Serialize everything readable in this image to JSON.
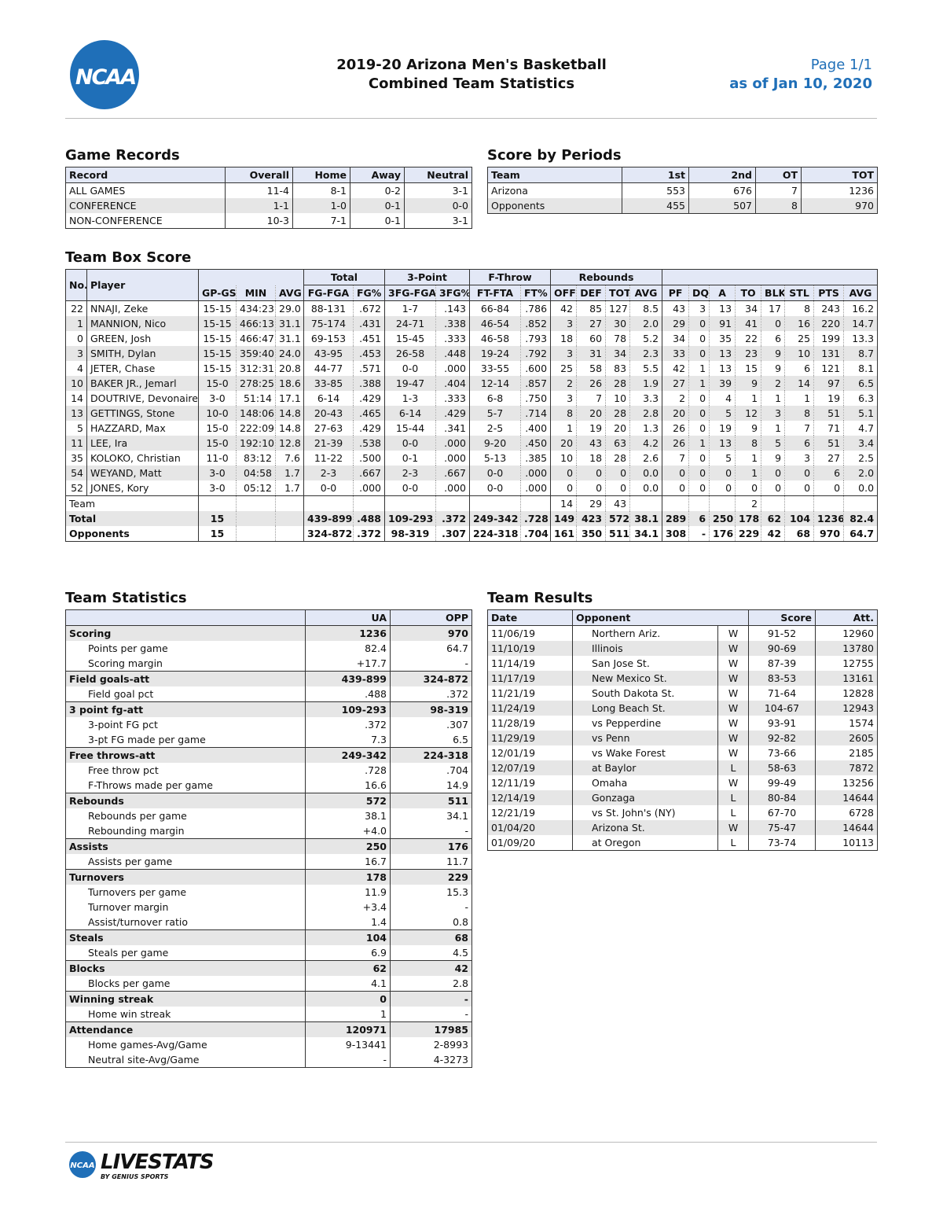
{
  "header": {
    "logo": "NCAA",
    "title": [
      "2019-20 Arizona Men's Basketball",
      "Combined Team Statistics"
    ],
    "page": "Page 1/1",
    "as_of": "as of Jan 10, 2020"
  },
  "game_records": {
    "title": "Game Records",
    "columns": [
      "Record",
      "Overall",
      "Home",
      "Away",
      "Neutral"
    ],
    "rows": [
      [
        "ALL GAMES",
        "11-4",
        "8-1",
        "0-2",
        "3-1"
      ],
      [
        "CONFERENCE",
        "1-1",
        "1-0",
        "0-1",
        "0-0"
      ],
      [
        "NON-CONFERENCE",
        "10-3",
        "7-1",
        "0-1",
        "3-1"
      ]
    ]
  },
  "score_by_periods": {
    "title": "Score by Periods",
    "columns": [
      "Team",
      "1st",
      "2nd",
      "OT",
      "TOT"
    ],
    "rows": [
      [
        "Arizona",
        "553",
        "676",
        "7",
        "1236"
      ],
      [
        "Opponents",
        "455",
        "507",
        "8",
        "970"
      ]
    ]
  },
  "box_score": {
    "title": "Team Box Score",
    "groups": [
      "Total",
      "3-Point",
      "F-Throw",
      "Rebounds"
    ],
    "columns": [
      "No.",
      "Player",
      "GP-GS",
      "MIN",
      "AVG",
      "FG-FGA",
      "FG%",
      "3FG-FGA",
      "3FG%",
      "FT-FTA",
      "FT%",
      "OFF",
      "DEF",
      "TOT",
      "AVG",
      "PF",
      "DQ",
      "A",
      "TO",
      "BLK",
      "STL",
      "PTS",
      "AVG"
    ],
    "players": [
      [
        "22",
        "NNAJI, Zeke",
        "15-15",
        "434:23",
        "29.0",
        "88-131",
        ".672",
        "1-7",
        ".143",
        "66-84",
        ".786",
        "42",
        "85",
        "127",
        "8.5",
        "43",
        "3",
        "13",
        "34",
        "17",
        "8",
        "243",
        "16.2"
      ],
      [
        "1",
        "MANNION, Nico",
        "15-15",
        "466:13",
        "31.1",
        "75-174",
        ".431",
        "24-71",
        ".338",
        "46-54",
        ".852",
        "3",
        "27",
        "30",
        "2.0",
        "29",
        "0",
        "91",
        "41",
        "0",
        "16",
        "220",
        "14.7"
      ],
      [
        "0",
        "GREEN, Josh",
        "15-15",
        "466:47",
        "31.1",
        "69-153",
        ".451",
        "15-45",
        ".333",
        "46-58",
        ".793",
        "18",
        "60",
        "78",
        "5.2",
        "34",
        "0",
        "35",
        "22",
        "6",
        "25",
        "199",
        "13.3"
      ],
      [
        "3",
        "SMITH, Dylan",
        "15-15",
        "359:40",
        "24.0",
        "43-95",
        ".453",
        "26-58",
        ".448",
        "19-24",
        ".792",
        "3",
        "31",
        "34",
        "2.3",
        "33",
        "0",
        "13",
        "23",
        "9",
        "10",
        "131",
        "8.7"
      ],
      [
        "4",
        "JETER, Chase",
        "15-15",
        "312:31",
        "20.8",
        "44-77",
        ".571",
        "0-0",
        ".000",
        "33-55",
        ".600",
        "25",
        "58",
        "83",
        "5.5",
        "42",
        "1",
        "13",
        "15",
        "9",
        "6",
        "121",
        "8.1"
      ],
      [
        "10",
        "BAKER JR., Jemarl",
        "15-0",
        "278:25",
        "18.6",
        "33-85",
        ".388",
        "19-47",
        ".404",
        "12-14",
        ".857",
        "2",
        "26",
        "28",
        "1.9",
        "27",
        "1",
        "39",
        "9",
        "2",
        "14",
        "97",
        "6.5"
      ],
      [
        "14",
        "DOUTRIVE, Devonaire",
        "3-0",
        "51:14",
        "17.1",
        "6-14",
        ".429",
        "1-3",
        ".333",
        "6-8",
        ".750",
        "3",
        "7",
        "10",
        "3.3",
        "2",
        "0",
        "4",
        "1",
        "1",
        "1",
        "19",
        "6.3"
      ],
      [
        "13",
        "GETTINGS, Stone",
        "10-0",
        "148:06",
        "14.8",
        "20-43",
        ".465",
        "6-14",
        ".429",
        "5-7",
        ".714",
        "8",
        "20",
        "28",
        "2.8",
        "20",
        "0",
        "5",
        "12",
        "3",
        "8",
        "51",
        "5.1"
      ],
      [
        "5",
        "HAZZARD, Max",
        "15-0",
        "222:09",
        "14.8",
        "27-63",
        ".429",
        "15-44",
        ".341",
        "2-5",
        ".400",
        "1",
        "19",
        "20",
        "1.3",
        "26",
        "0",
        "19",
        "9",
        "1",
        "7",
        "71",
        "4.7"
      ],
      [
        "11",
        "LEE, Ira",
        "15-0",
        "192:10",
        "12.8",
        "21-39",
        ".538",
        "0-0",
        ".000",
        "9-20",
        ".450",
        "20",
        "43",
        "63",
        "4.2",
        "26",
        "1",
        "13",
        "8",
        "5",
        "6",
        "51",
        "3.4"
      ],
      [
        "35",
        "KOLOKO, Christian",
        "11-0",
        "83:12",
        "7.6",
        "11-22",
        ".500",
        "0-1",
        ".000",
        "5-13",
        ".385",
        "10",
        "18",
        "28",
        "2.6",
        "7",
        "0",
        "5",
        "1",
        "9",
        "3",
        "27",
        "2.5"
      ],
      [
        "54",
        "WEYAND, Matt",
        "3-0",
        "04:58",
        "1.7",
        "2-3",
        ".667",
        "2-3",
        ".667",
        "0-0",
        ".000",
        "0",
        "0",
        "0",
        "0.0",
        "0",
        "0",
        "0",
        "1",
        "0",
        "0",
        "6",
        "2.0"
      ],
      [
        "52",
        "JONES, Kory",
        "3-0",
        "05:12",
        "1.7",
        "0-0",
        ".000",
        "0-0",
        ".000",
        "0-0",
        ".000",
        "0",
        "0",
        "0",
        "0.0",
        "0",
        "0",
        "0",
        "0",
        "0",
        "0",
        "0",
        "0.0"
      ]
    ],
    "totals": [
      {
        "label": "Team",
        "cells": [
          null,
          null,
          null,
          null,
          null,
          null,
          null,
          null,
          null,
          "14",
          "29",
          "43",
          null,
          null,
          null,
          null,
          "2",
          null,
          null,
          null,
          null
        ]
      },
      {
        "label": "Total",
        "cells": [
          "15",
          null,
          null,
          "439-899",
          ".488",
          "109-293",
          ".372",
          "249-342",
          ".728",
          "149",
          "423",
          "572",
          "38.1",
          "289",
          "6",
          "250",
          "178",
          "62",
          "104",
          "1236",
          "82.4"
        ]
      },
      {
        "label": "Opponents",
        "cells": [
          "15",
          null,
          null,
          "324-872",
          ".372",
          "98-319",
          ".307",
          "224-318",
          ".704",
          "161",
          "350",
          "511",
          "34.1",
          "308",
          "-",
          "176",
          "229",
          "42",
          "68",
          "970",
          "64.7"
        ]
      }
    ]
  },
  "team_statistics": {
    "title": "Team Statistics",
    "columns": [
      "UA",
      "OPP"
    ],
    "sections": [
      {
        "label": "Scoring",
        "values": [
          "1236",
          "970"
        ],
        "items": [
          {
            "label": "Points per game",
            "values": [
              "82.4",
              "64.7"
            ]
          },
          {
            "label": "Scoring margin",
            "values": [
              "+17.7",
              "-"
            ]
          }
        ]
      },
      {
        "label": "Field goals-att",
        "values": [
          "439-899",
          "324-872"
        ],
        "items": [
          {
            "label": "Field goal pct",
            "values": [
              ".488",
              ".372"
            ]
          }
        ]
      },
      {
        "label": "3 point fg-att",
        "values": [
          "109-293",
          "98-319"
        ],
        "items": [
          {
            "label": "3-point FG pct",
            "values": [
              ".372",
              ".307"
            ]
          },
          {
            "label": "3-pt FG made per game",
            "values": [
              "7.3",
              "6.5"
            ]
          }
        ]
      },
      {
        "label": "Free throws-att",
        "values": [
          "249-342",
          "224-318"
        ],
        "items": [
          {
            "label": "Free throw pct",
            "values": [
              ".728",
              ".704"
            ]
          },
          {
            "label": "F-Throws made per game",
            "values": [
              "16.6",
              "14.9"
            ]
          }
        ]
      },
      {
        "label": "Rebounds",
        "values": [
          "572",
          "511"
        ],
        "items": [
          {
            "label": "Rebounds per game",
            "values": [
              "38.1",
              "34.1"
            ]
          },
          {
            "label": "Rebounding margin",
            "values": [
              "+4.0",
              "-"
            ]
          }
        ]
      },
      {
        "label": "Assists",
        "values": [
          "250",
          "176"
        ],
        "items": [
          {
            "label": "Assists per game",
            "values": [
              "16.7",
              "11.7"
            ]
          }
        ]
      },
      {
        "label": "Turnovers",
        "values": [
          "178",
          "229"
        ],
        "items": [
          {
            "label": "Turnovers per game",
            "values": [
              "11.9",
              "15.3"
            ]
          },
          {
            "label": "Turnover margin",
            "values": [
              "+3.4",
              "-"
            ]
          },
          {
            "label": "Assist/turnover ratio",
            "values": [
              "1.4",
              "0.8"
            ]
          }
        ]
      },
      {
        "label": "Steals",
        "values": [
          "104",
          "68"
        ],
        "items": [
          {
            "label": "Steals per game",
            "values": [
              "6.9",
              "4.5"
            ]
          }
        ]
      },
      {
        "label": "Blocks",
        "values": [
          "62",
          "42"
        ],
        "items": [
          {
            "label": "Blocks per game",
            "values": [
              "4.1",
              "2.8"
            ]
          }
        ]
      },
      {
        "label": "Winning streak",
        "values": [
          "0",
          "-"
        ],
        "items": [
          {
            "label": "Home win streak",
            "values": [
              "1",
              "-"
            ]
          }
        ]
      },
      {
        "label": "Attendance",
        "values": [
          "120971",
          "17985"
        ],
        "items": [
          {
            "label": "Home games-Avg/Game",
            "values": [
              "9-13441",
              "2-8993"
            ]
          },
          {
            "label": "Neutral site-Avg/Game",
            "values": [
              "-",
              "4-3273"
            ]
          }
        ]
      }
    ]
  },
  "team_results": {
    "title": "Team Results",
    "columns": [
      "Date",
      "Opponent",
      "Score",
      "Att."
    ],
    "rows": [
      [
        "11/06/19",
        "Northern Ariz.",
        "W",
        "91-52",
        "12960"
      ],
      [
        "11/10/19",
        "Illinois",
        "W",
        "90-69",
        "13780"
      ],
      [
        "11/14/19",
        "San Jose St.",
        "W",
        "87-39",
        "12755"
      ],
      [
        "11/17/19",
        "New Mexico St.",
        "W",
        "83-53",
        "13161"
      ],
      [
        "11/21/19",
        "South Dakota St.",
        "W",
        "71-64",
        "12828"
      ],
      [
        "11/24/19",
        "Long Beach St.",
        "W",
        "104-67",
        "12943"
      ],
      [
        "11/28/19",
        "vs Pepperdine",
        "W",
        "93-91",
        "1574"
      ],
      [
        "11/29/19",
        "vs Penn",
        "W",
        "92-82",
        "2605"
      ],
      [
        "12/01/19",
        "vs Wake Forest",
        "W",
        "73-66",
        "2185"
      ],
      [
        "12/07/19",
        "at Baylor",
        "L",
        "58-63",
        "7872"
      ],
      [
        "12/11/19",
        "Omaha",
        "W",
        "99-49",
        "13256"
      ],
      [
        "12/14/19",
        "Gonzaga",
        "L",
        "80-84",
        "14644"
      ],
      [
        "12/21/19",
        "vs St. John's (NY)",
        "L",
        "67-70",
        "6728"
      ],
      [
        "01/04/20",
        "Arizona St.",
        "W",
        "75-47",
        "14644"
      ],
      [
        "01/09/20",
        "at Oregon",
        "L",
        "73-74",
        "10113"
      ]
    ]
  },
  "footer": {
    "logo_badge": "NCAA",
    "logo": "LIVESTATS",
    "logo_sub": "BY GENIUS SPORTS"
  }
}
